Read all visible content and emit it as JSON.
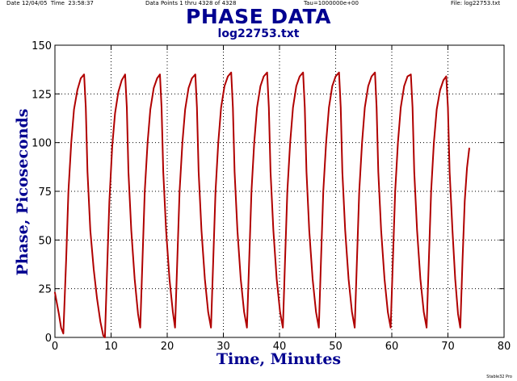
{
  "header": {
    "date": "Date 12/04/05  Time  23:58:37",
    "points": "Data Points 1 thru 4328 of 4328",
    "tau": "Tau=1000000e+00",
    "file": "File: log22753.txt"
  },
  "credit": "Stable32 Pro",
  "colors": {
    "title": "#000090",
    "trace": "#b00000",
    "grid": "#000000"
  },
  "chart_data": {
    "type": "line",
    "title": "PHASE DATA",
    "subtitle": "log22753.txt",
    "xlabel": "Time, Minutes",
    "ylabel": "Phase, Picoseconds",
    "xlim": [
      0,
      80
    ],
    "ylim": [
      0,
      150
    ],
    "xticks": [
      0,
      10,
      20,
      30,
      40,
      50,
      60,
      70,
      80
    ],
    "yticks": [
      0,
      25,
      50,
      75,
      100,
      125,
      150
    ],
    "grid": true,
    "series": [
      {
        "values": [
          [
            0.0,
            23
          ],
          [
            0.7,
            12
          ],
          [
            1.1,
            5
          ],
          [
            1.5,
            2
          ],
          [
            2.0,
            40
          ],
          [
            2.4,
            75
          ],
          [
            2.9,
            100
          ],
          [
            3.4,
            117
          ],
          [
            4.0,
            127
          ],
          [
            4.6,
            133
          ],
          [
            5.2,
            135
          ],
          [
            5.5,
            118
          ],
          [
            5.8,
            85
          ],
          [
            6.3,
            55
          ],
          [
            6.9,
            35
          ],
          [
            7.5,
            20
          ],
          [
            8.1,
            8
          ],
          [
            8.6,
            1
          ],
          [
            8.9,
            0
          ],
          [
            9.3,
            35
          ],
          [
            9.7,
            70
          ],
          [
            10.2,
            98
          ],
          [
            10.7,
            115
          ],
          [
            11.3,
            126
          ],
          [
            11.9,
            132
          ],
          [
            12.5,
            135
          ],
          [
            12.8,
            118
          ],
          [
            13.1,
            85
          ],
          [
            13.6,
            55
          ],
          [
            14.2,
            30
          ],
          [
            14.8,
            12
          ],
          [
            15.2,
            5
          ],
          [
            15.6,
            40
          ],
          [
            16.0,
            75
          ],
          [
            16.5,
            100
          ],
          [
            17.0,
            117
          ],
          [
            17.6,
            128
          ],
          [
            18.2,
            133
          ],
          [
            18.7,
            135
          ],
          [
            19.0,
            118
          ],
          [
            19.3,
            85
          ],
          [
            19.8,
            55
          ],
          [
            20.4,
            30
          ],
          [
            21.0,
            13
          ],
          [
            21.4,
            5
          ],
          [
            21.8,
            40
          ],
          [
            22.2,
            75
          ],
          [
            22.7,
            100
          ],
          [
            23.2,
            117
          ],
          [
            23.8,
            128
          ],
          [
            24.4,
            133
          ],
          [
            25.0,
            135
          ],
          [
            25.3,
            118
          ],
          [
            25.6,
            85
          ],
          [
            26.1,
            55
          ],
          [
            26.7,
            30
          ],
          [
            27.3,
            13
          ],
          [
            27.8,
            5
          ],
          [
            28.2,
            40
          ],
          [
            28.6,
            75
          ],
          [
            29.1,
            100
          ],
          [
            29.6,
            118
          ],
          [
            30.2,
            129
          ],
          [
            30.8,
            134
          ],
          [
            31.4,
            136
          ],
          [
            31.7,
            118
          ],
          [
            32.0,
            85
          ],
          [
            32.5,
            55
          ],
          [
            33.1,
            30
          ],
          [
            33.7,
            13
          ],
          [
            34.2,
            5
          ],
          [
            34.6,
            40
          ],
          [
            35.0,
            75
          ],
          [
            35.5,
            100
          ],
          [
            36.0,
            118
          ],
          [
            36.6,
            129
          ],
          [
            37.2,
            134
          ],
          [
            37.8,
            136
          ],
          [
            38.1,
            118
          ],
          [
            38.4,
            85
          ],
          [
            38.9,
            55
          ],
          [
            39.5,
            30
          ],
          [
            40.1,
            13
          ],
          [
            40.6,
            5
          ],
          [
            41.0,
            40
          ],
          [
            41.4,
            75
          ],
          [
            41.9,
            100
          ],
          [
            42.4,
            118
          ],
          [
            43.0,
            129
          ],
          [
            43.6,
            134
          ],
          [
            44.2,
            136
          ],
          [
            44.5,
            118
          ],
          [
            44.8,
            85
          ],
          [
            45.3,
            55
          ],
          [
            45.9,
            30
          ],
          [
            46.5,
            13
          ],
          [
            47.0,
            5
          ],
          [
            47.4,
            40
          ],
          [
            47.8,
            75
          ],
          [
            48.3,
            100
          ],
          [
            48.8,
            118
          ],
          [
            49.4,
            129
          ],
          [
            50.0,
            134
          ],
          [
            50.6,
            136
          ],
          [
            50.9,
            118
          ],
          [
            51.2,
            85
          ],
          [
            51.7,
            55
          ],
          [
            52.3,
            30
          ],
          [
            52.9,
            13
          ],
          [
            53.4,
            5
          ],
          [
            53.8,
            40
          ],
          [
            54.2,
            75
          ],
          [
            54.7,
            100
          ],
          [
            55.2,
            118
          ],
          [
            55.8,
            129
          ],
          [
            56.4,
            134
          ],
          [
            57.0,
            136
          ],
          [
            57.3,
            118
          ],
          [
            57.6,
            85
          ],
          [
            58.1,
            55
          ],
          [
            58.7,
            30
          ],
          [
            59.3,
            13
          ],
          [
            59.8,
            5
          ],
          [
            60.2,
            40
          ],
          [
            60.6,
            75
          ],
          [
            61.1,
            100
          ],
          [
            61.6,
            118
          ],
          [
            62.2,
            129
          ],
          [
            62.8,
            134
          ],
          [
            63.4,
            135
          ],
          [
            63.7,
            118
          ],
          [
            64.0,
            85
          ],
          [
            64.5,
            55
          ],
          [
            65.1,
            30
          ],
          [
            65.7,
            13
          ],
          [
            66.2,
            5
          ],
          [
            66.6,
            40
          ],
          [
            67.0,
            75
          ],
          [
            67.5,
            100
          ],
          [
            68.0,
            117
          ],
          [
            68.6,
            127
          ],
          [
            69.2,
            132
          ],
          [
            69.7,
            134
          ],
          [
            70.0,
            118
          ],
          [
            70.3,
            85
          ],
          [
            70.8,
            55
          ],
          [
            71.3,
            30
          ],
          [
            71.8,
            12
          ],
          [
            72.2,
            5
          ],
          [
            72.6,
            40
          ],
          [
            73.0,
            70
          ],
          [
            73.4,
            87
          ],
          [
            73.8,
            97
          ]
        ]
      }
    ]
  }
}
